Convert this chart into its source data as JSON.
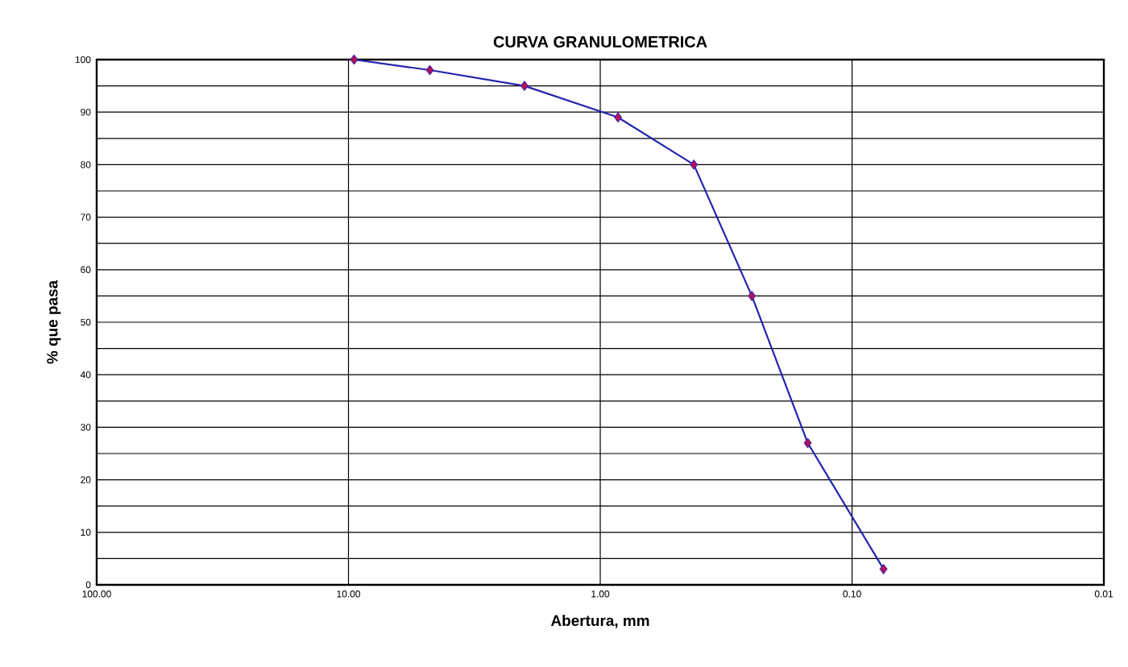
{
  "chart_data": {
    "type": "line",
    "title": "CURVA GRANULOMETRICA",
    "xlabel": "Abertura, mm",
    "ylabel": "% que pasa",
    "log": "x",
    "grid": true,
    "marker": "diamond",
    "line_style": "solid",
    "xlim": [
      100,
      0.01
    ],
    "xticks": [
      {
        "value": 100,
        "label": "100.00"
      },
      {
        "value": 10,
        "label": "10.00"
      },
      {
        "value": 1,
        "label": "1.00"
      },
      {
        "value": 0.1,
        "label": "0.10"
      },
      {
        "value": 0.01,
        "label": "0.01"
      }
    ],
    "ylim": [
      0,
      100
    ],
    "yticks": [
      0,
      10,
      20,
      30,
      40,
      50,
      60,
      70,
      80,
      90,
      100
    ],
    "series": [
      {
        "color": "#2424b0",
        "x": [
          9.5,
          4.75,
          2.0,
          0.85,
          0.425,
          0.25,
          0.15,
          0.075
        ],
        "values": [
          100,
          98,
          95,
          89,
          80,
          55,
          27,
          3
        ]
      }
    ]
  }
}
